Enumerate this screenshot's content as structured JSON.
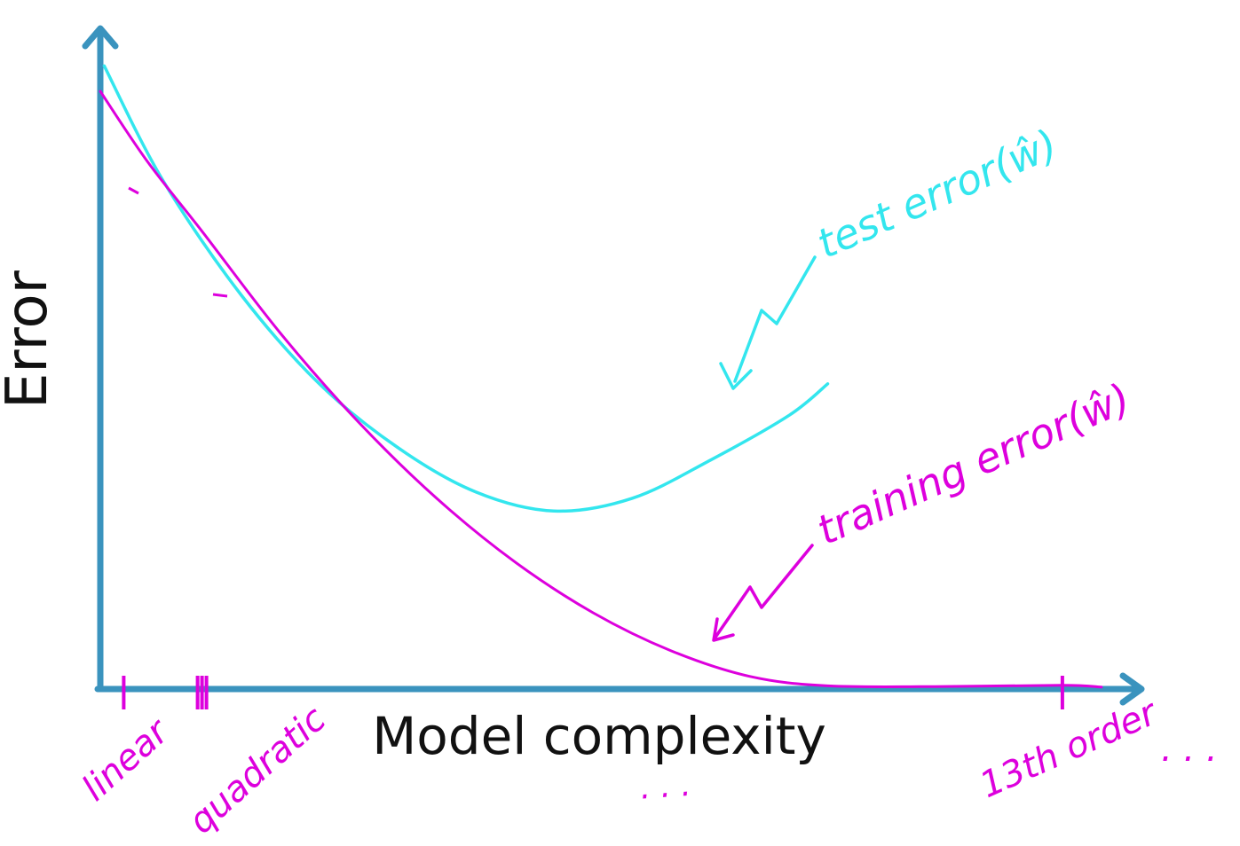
{
  "chart_data": {
    "type": "line",
    "xlabel": "Model complexity",
    "ylabel": "Error",
    "x_ticks": [
      {
        "label": "linear",
        "x": 1
      },
      {
        "label": "quadratic",
        "x": 2
      },
      {
        "label": "13th order",
        "x": 13
      }
    ],
    "x_tick_ellipsis": ". . .",
    "x_axis_ellipsis": ". . .",
    "xlim": [
      0.7,
      14.0
    ],
    "ylim": [
      0,
      1
    ],
    "grid": false,
    "series": [
      {
        "name": "test error(ŵ)",
        "color": "#33e6ee",
        "points": [
          [
            0.75,
            0.98
          ],
          [
            1.5,
            0.8
          ],
          [
            2.5,
            0.62
          ],
          [
            3.5,
            0.48
          ],
          [
            4.5,
            0.38
          ],
          [
            5.5,
            0.31
          ],
          [
            6.5,
            0.28
          ],
          [
            7.5,
            0.3
          ],
          [
            8.5,
            0.36
          ],
          [
            9.5,
            0.43
          ],
          [
            10.0,
            0.48
          ]
        ]
      },
      {
        "name": "training error(ŵ)",
        "color": "#dd00dd",
        "points": [
          [
            0.7,
            0.94
          ],
          [
            1.3,
            0.83
          ],
          [
            2.0,
            0.72
          ],
          [
            3.0,
            0.56
          ],
          [
            4.0,
            0.42
          ],
          [
            5.0,
            0.3
          ],
          [
            6.0,
            0.2
          ],
          [
            7.0,
            0.12
          ],
          [
            8.0,
            0.06
          ],
          [
            9.0,
            0.02
          ],
          [
            10.0,
            0.005
          ],
          [
            11.5,
            0.004
          ],
          [
            13.0,
            0.006
          ],
          [
            13.5,
            0.003
          ]
        ]
      }
    ],
    "annotations": [
      {
        "text": "test error(ŵ)",
        "series": 0
      },
      {
        "text": "training error(ŵ)",
        "series": 1
      }
    ],
    "colors": {
      "axis": "#3a93be",
      "test": "#33e6ee",
      "train": "#dd00dd",
      "text": "#111111"
    }
  }
}
